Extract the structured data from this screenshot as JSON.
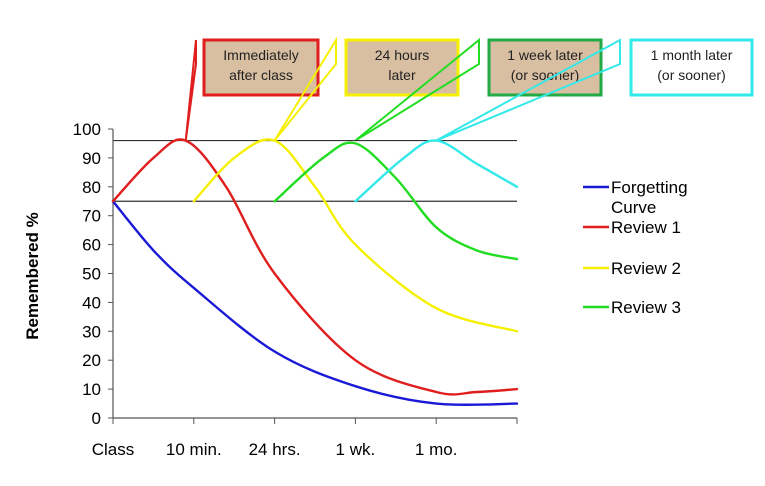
{
  "chart_data": {
    "type": "line",
    "title": "",
    "xlabel": "",
    "ylabel": "Remembered %",
    "categories": [
      "Class",
      "10 min.",
      "24 hrs.",
      "1 wk.",
      "1 mo.",
      ""
    ],
    "ylim": [
      0,
      100
    ],
    "yticks": [
      0,
      10,
      20,
      30,
      40,
      50,
      60,
      70,
      80,
      90,
      100
    ],
    "reference_lines": [
      96,
      75
    ],
    "grid": false,
    "legend_position": "right",
    "series": [
      {
        "name": "Forgetting Curve",
        "color": "#1a1ad6",
        "points": [
          [
            0,
            75
          ],
          [
            0.5,
            58
          ],
          [
            1,
            45
          ],
          [
            2,
            23
          ],
          [
            3,
            11
          ],
          [
            4,
            5
          ],
          [
            5,
            5
          ]
        ]
      },
      {
        "name": "Review 1",
        "color": "#e01e1e",
        "points": [
          [
            0,
            75
          ],
          [
            0.5,
            90
          ],
          [
            0.9,
            96
          ],
          [
            1.4,
            80
          ],
          [
            2,
            50
          ],
          [
            3,
            20
          ],
          [
            4,
            9
          ],
          [
            4.5,
            9
          ],
          [
            5,
            10
          ]
        ]
      },
      {
        "name": "Review 2",
        "color": "#f5f000",
        "points": [
          [
            1,
            75
          ],
          [
            1.5,
            90
          ],
          [
            2,
            96
          ],
          [
            2.5,
            80
          ],
          [
            3,
            60
          ],
          [
            4,
            38
          ],
          [
            5,
            30
          ]
        ]
      },
      {
        "name": "Review 3",
        "color": "#22dd22",
        "points": [
          [
            2,
            75
          ],
          [
            2.6,
            90
          ],
          [
            3,
            95
          ],
          [
            3.5,
            83
          ],
          [
            4,
            66
          ],
          [
            4.5,
            58
          ],
          [
            5,
            55
          ]
        ]
      },
      {
        "name": "",
        "color": "#33e8e8",
        "points": [
          [
            3,
            75
          ],
          [
            3.6,
            90
          ],
          [
            4,
            96
          ],
          [
            4.5,
            88
          ],
          [
            5,
            80
          ]
        ]
      }
    ],
    "callouts": [
      {
        "text": [
          "Immediately",
          "after class"
        ],
        "border": "#e01e1e",
        "fill": "#d8bfa2",
        "series": 0
      },
      {
        "text": [
          "24 hours",
          "later"
        ],
        "border": "#f5f000",
        "fill": "#d8bfa2",
        "series": 1
      },
      {
        "text": [
          "1 week later",
          "(or sooner)"
        ],
        "border": "#22aa44",
        "fill": "#d8bfa2",
        "series": 2
      },
      {
        "text": [
          "1 month later",
          "(or sooner)"
        ],
        "border": "#33e8e8",
        "fill": "#ffffff",
        "series": 3
      }
    ]
  }
}
